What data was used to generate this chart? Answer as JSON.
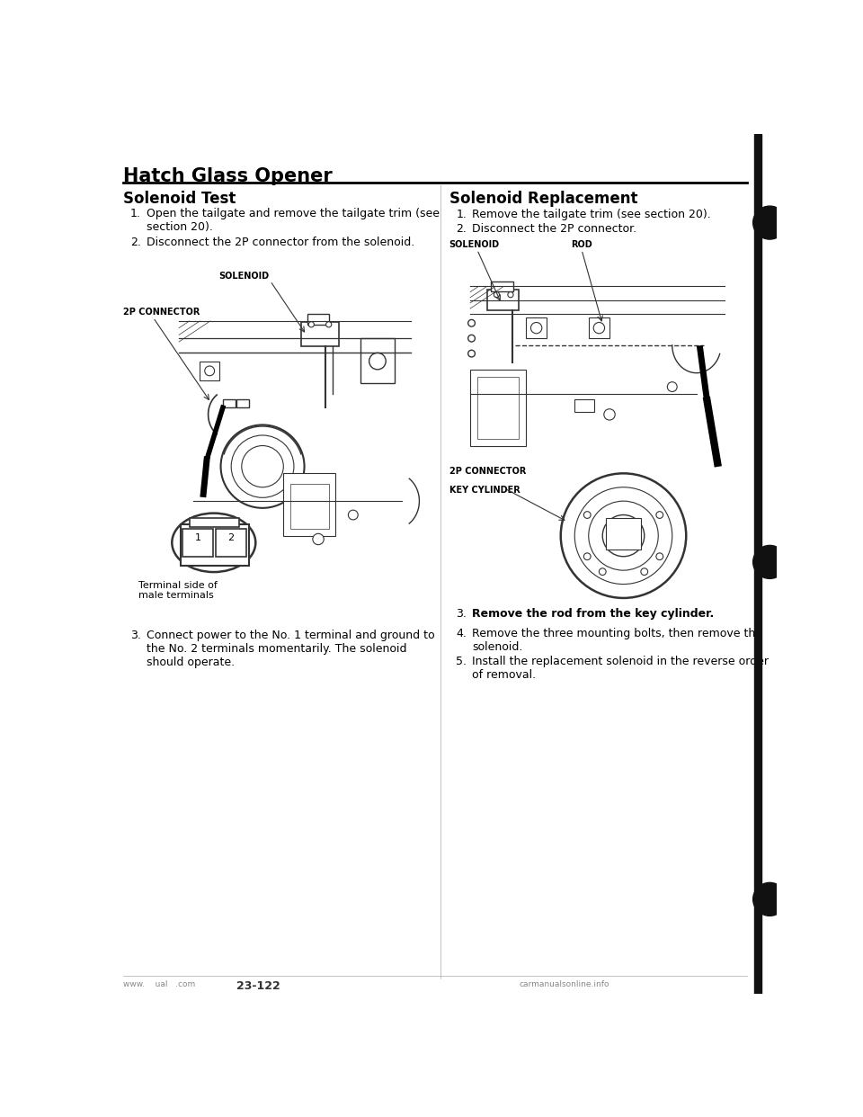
{
  "title": "Hatch Glass Opener",
  "bg_color": "#ffffff",
  "left_section_title": "Solenoid Test",
  "right_section_title": "Solenoid Replacement",
  "left_step1": "Open the tailgate and remove the tailgate trim (see\nsection 20).",
  "left_step2": "Disconnect the 2P connector from the solenoid.",
  "left_step3": "Connect power to the No. 1 terminal and ground to\nthe No. 2 terminals momentarily. The solenoid\nshould operate.",
  "right_step1": "Remove the tailgate trim (see section 20).",
  "right_step2": "Disconnect the 2P connector.",
  "right_step3": "Remove the rod from the key cylinder.",
  "right_step4": "Remove the three mounting bolts, then remove the\nsolenoid.",
  "right_step5": "Install the replacement solenoid in the reverse order\nof removal.",
  "lbl_solenoid": "SOLENOID",
  "lbl_2p_connector": "2P CONNECTOR",
  "lbl_terminal_note": "Terminal side of\nmale terminals",
  "lbl_rod": "ROD",
  "lbl_key_cylinder": "KEY CYLINDER",
  "footer_page": "23-122",
  "footer_right": "carmanualsonline.info",
  "text_color": "#000000",
  "line_color": "#333333",
  "bg_color2": "#ffffff",
  "title_fs": 15,
  "section_fs": 12,
  "body_fs": 9,
  "small_fs": 8,
  "label_fs": 7
}
